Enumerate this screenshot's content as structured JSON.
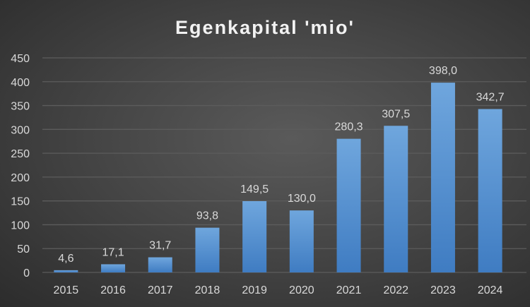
{
  "chart_data": {
    "type": "bar",
    "title": "Egenkapital 'mio'",
    "xlabel": "",
    "ylabel": "",
    "categories": [
      "2015",
      "2016",
      "2017",
      "2018",
      "2019",
      "2020",
      "2021",
      "2022",
      "2023",
      "2024"
    ],
    "values": [
      4.6,
      17.1,
      31.7,
      93.8,
      149.5,
      130.0,
      280.3,
      307.5,
      398.0,
      342.7
    ],
    "data_labels": [
      "4,6",
      "17,1",
      "31,7",
      "93,8",
      "149,5",
      "130,0",
      "280,3",
      "307,5",
      "398,0",
      "342,7"
    ],
    "ylim": [
      0,
      450
    ],
    "yticks": [
      0,
      50,
      100,
      150,
      200,
      250,
      300,
      350,
      400,
      450
    ],
    "grid": true,
    "legend": "none",
    "colors": {
      "bar_top": "#6fa6dd",
      "bar_bottom": "#3f7cc2",
      "grid": "#5c5c5c"
    }
  }
}
